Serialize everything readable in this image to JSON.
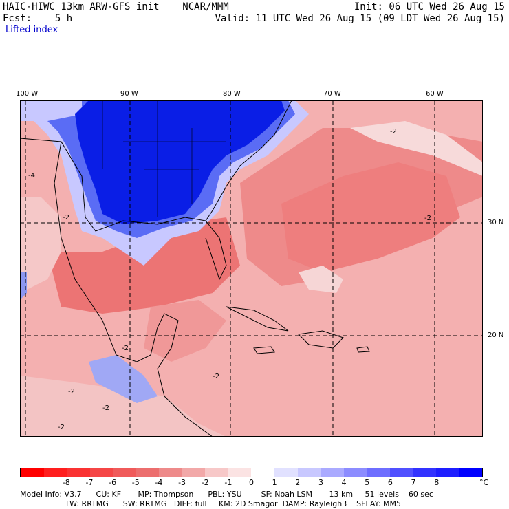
{
  "header": {
    "model_title": "HAIC-HIWC 13km ARW-GFS init",
    "org": "NCAR/MMM",
    "init": "Init: 06 UTC Wed 26 Aug 15",
    "fcst_label": "Fcst:",
    "fcst_value": "5 h",
    "valid": "Valid: 11 UTC Wed 26 Aug 15 (09 LDT Wed 26 Aug 15)",
    "field_name": "Lifted index"
  },
  "map": {
    "longitude_labels": [
      "100 W",
      "90 W",
      "80 W",
      "70 W",
      "60 W"
    ],
    "latitude_labels": [
      "30 N",
      "20 N"
    ],
    "contour_labels": [
      "-4",
      "-2",
      "-2",
      "-2",
      "-2",
      "-2",
      "-2",
      "-2",
      "-2"
    ],
    "colors": {
      "cold": "#0a1ee6",
      "mid_blue": "#3c50f0",
      "pale_pink": "#f5c8c8",
      "pink": "#f09696",
      "red": "#ea6e6e",
      "deep_red": "#e65050",
      "grid": "#000000"
    }
  },
  "colorbar": {
    "labels": [
      "-8",
      "-7",
      "-6",
      "-5",
      "-4",
      "-3",
      "-2",
      "-1",
      "0",
      "1",
      "2",
      "3",
      "4",
      "5",
      "6",
      "7",
      "8"
    ],
    "unit": "°C",
    "colors": [
      "#ff0000",
      "#ff1e1e",
      "#fa3232",
      "#f54646",
      "#f05a5a",
      "#ec6e6e",
      "#ee8a8a",
      "#f2a8a8",
      "#f7c8c8",
      "#fbe3e3",
      "#ffffff",
      "#e1e1ff",
      "#c8c8ff",
      "#aaaaff",
      "#8c8cff",
      "#6e6eff",
      "#5050ff",
      "#3232ff",
      "#1e1eff",
      "#0000ff"
    ]
  },
  "info": {
    "line1": "Model Info: V3.7      CU: KF       MP: Thompson      PBL: YSU        SF: Noah LSM       13 km     51 levels    60 sec",
    "line2": "LW: RRTMG      SW: RRTMG   DIFF: full     KM: 2D Smagor  DAMP: Rayleigh3    SFLAY: MM5"
  }
}
